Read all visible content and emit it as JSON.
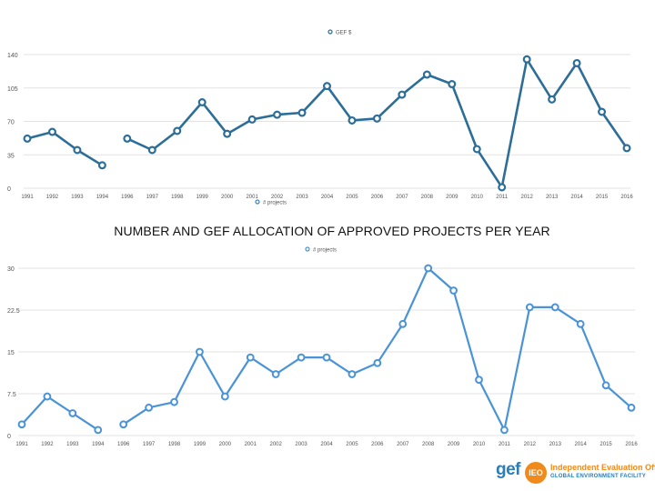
{
  "page_title": "NUMBER AND GEF ALLOCATION OF APPROVED PROJECTS PER YEAR",
  "chart_data": [
    {
      "type": "line",
      "title": "",
      "legend": "GEF $",
      "legend_placement": "top-center",
      "embedded_legend": "# projects",
      "x": [
        "1991",
        "1992",
        "1993",
        "1994",
        "1996",
        "1997",
        "1998",
        "1999",
        "2000",
        "2001",
        "2002",
        "2003",
        "2004",
        "2005",
        "2006",
        "2007",
        "2008",
        "2009",
        "2010",
        "2011",
        "2012",
        "2013",
        "2014",
        "2015",
        "2016"
      ],
      "values": [
        52,
        59,
        40,
        24,
        52,
        40,
        60,
        90,
        57,
        72,
        77,
        79,
        107,
        71,
        73,
        98,
        119,
        109,
        41,
        1,
        135,
        93,
        131,
        80,
        42
      ],
      "y_ticks": [
        "0",
        "35",
        "70",
        "105",
        "140"
      ],
      "ylim": [
        0,
        140
      ],
      "gap_after": "1994",
      "color": "#2c6e98"
    },
    {
      "type": "line",
      "title": "",
      "legend": "# projects",
      "legend_placement": "top-center",
      "x": [
        "1991",
        "1992",
        "1993",
        "1994",
        "1996",
        "1997",
        "1998",
        "1999",
        "2000",
        "2001",
        "2002",
        "2003",
        "2004",
        "2005",
        "2006",
        "2007",
        "2008",
        "2009",
        "2010",
        "2011",
        "2012",
        "2013",
        "2014",
        "2015",
        "2016"
      ],
      "values": [
        2,
        7,
        4,
        1,
        2,
        5,
        6,
        15,
        7,
        14,
        11,
        14,
        14,
        11,
        13,
        20,
        30,
        26,
        10,
        1,
        23,
        23,
        20,
        9,
        5
      ],
      "y_ticks": [
        "0",
        "7.5",
        "15",
        "22.5",
        "30"
      ],
      "ylim": [
        0,
        30
      ],
      "gap_after": "1994",
      "color": "#4a93d6"
    }
  ],
  "logo": {
    "brand": "gef",
    "badge": "IEO",
    "line1": "Independent Evaluation Office",
    "line2": "GLOBAL ENVIRONMENT FACILITY"
  }
}
